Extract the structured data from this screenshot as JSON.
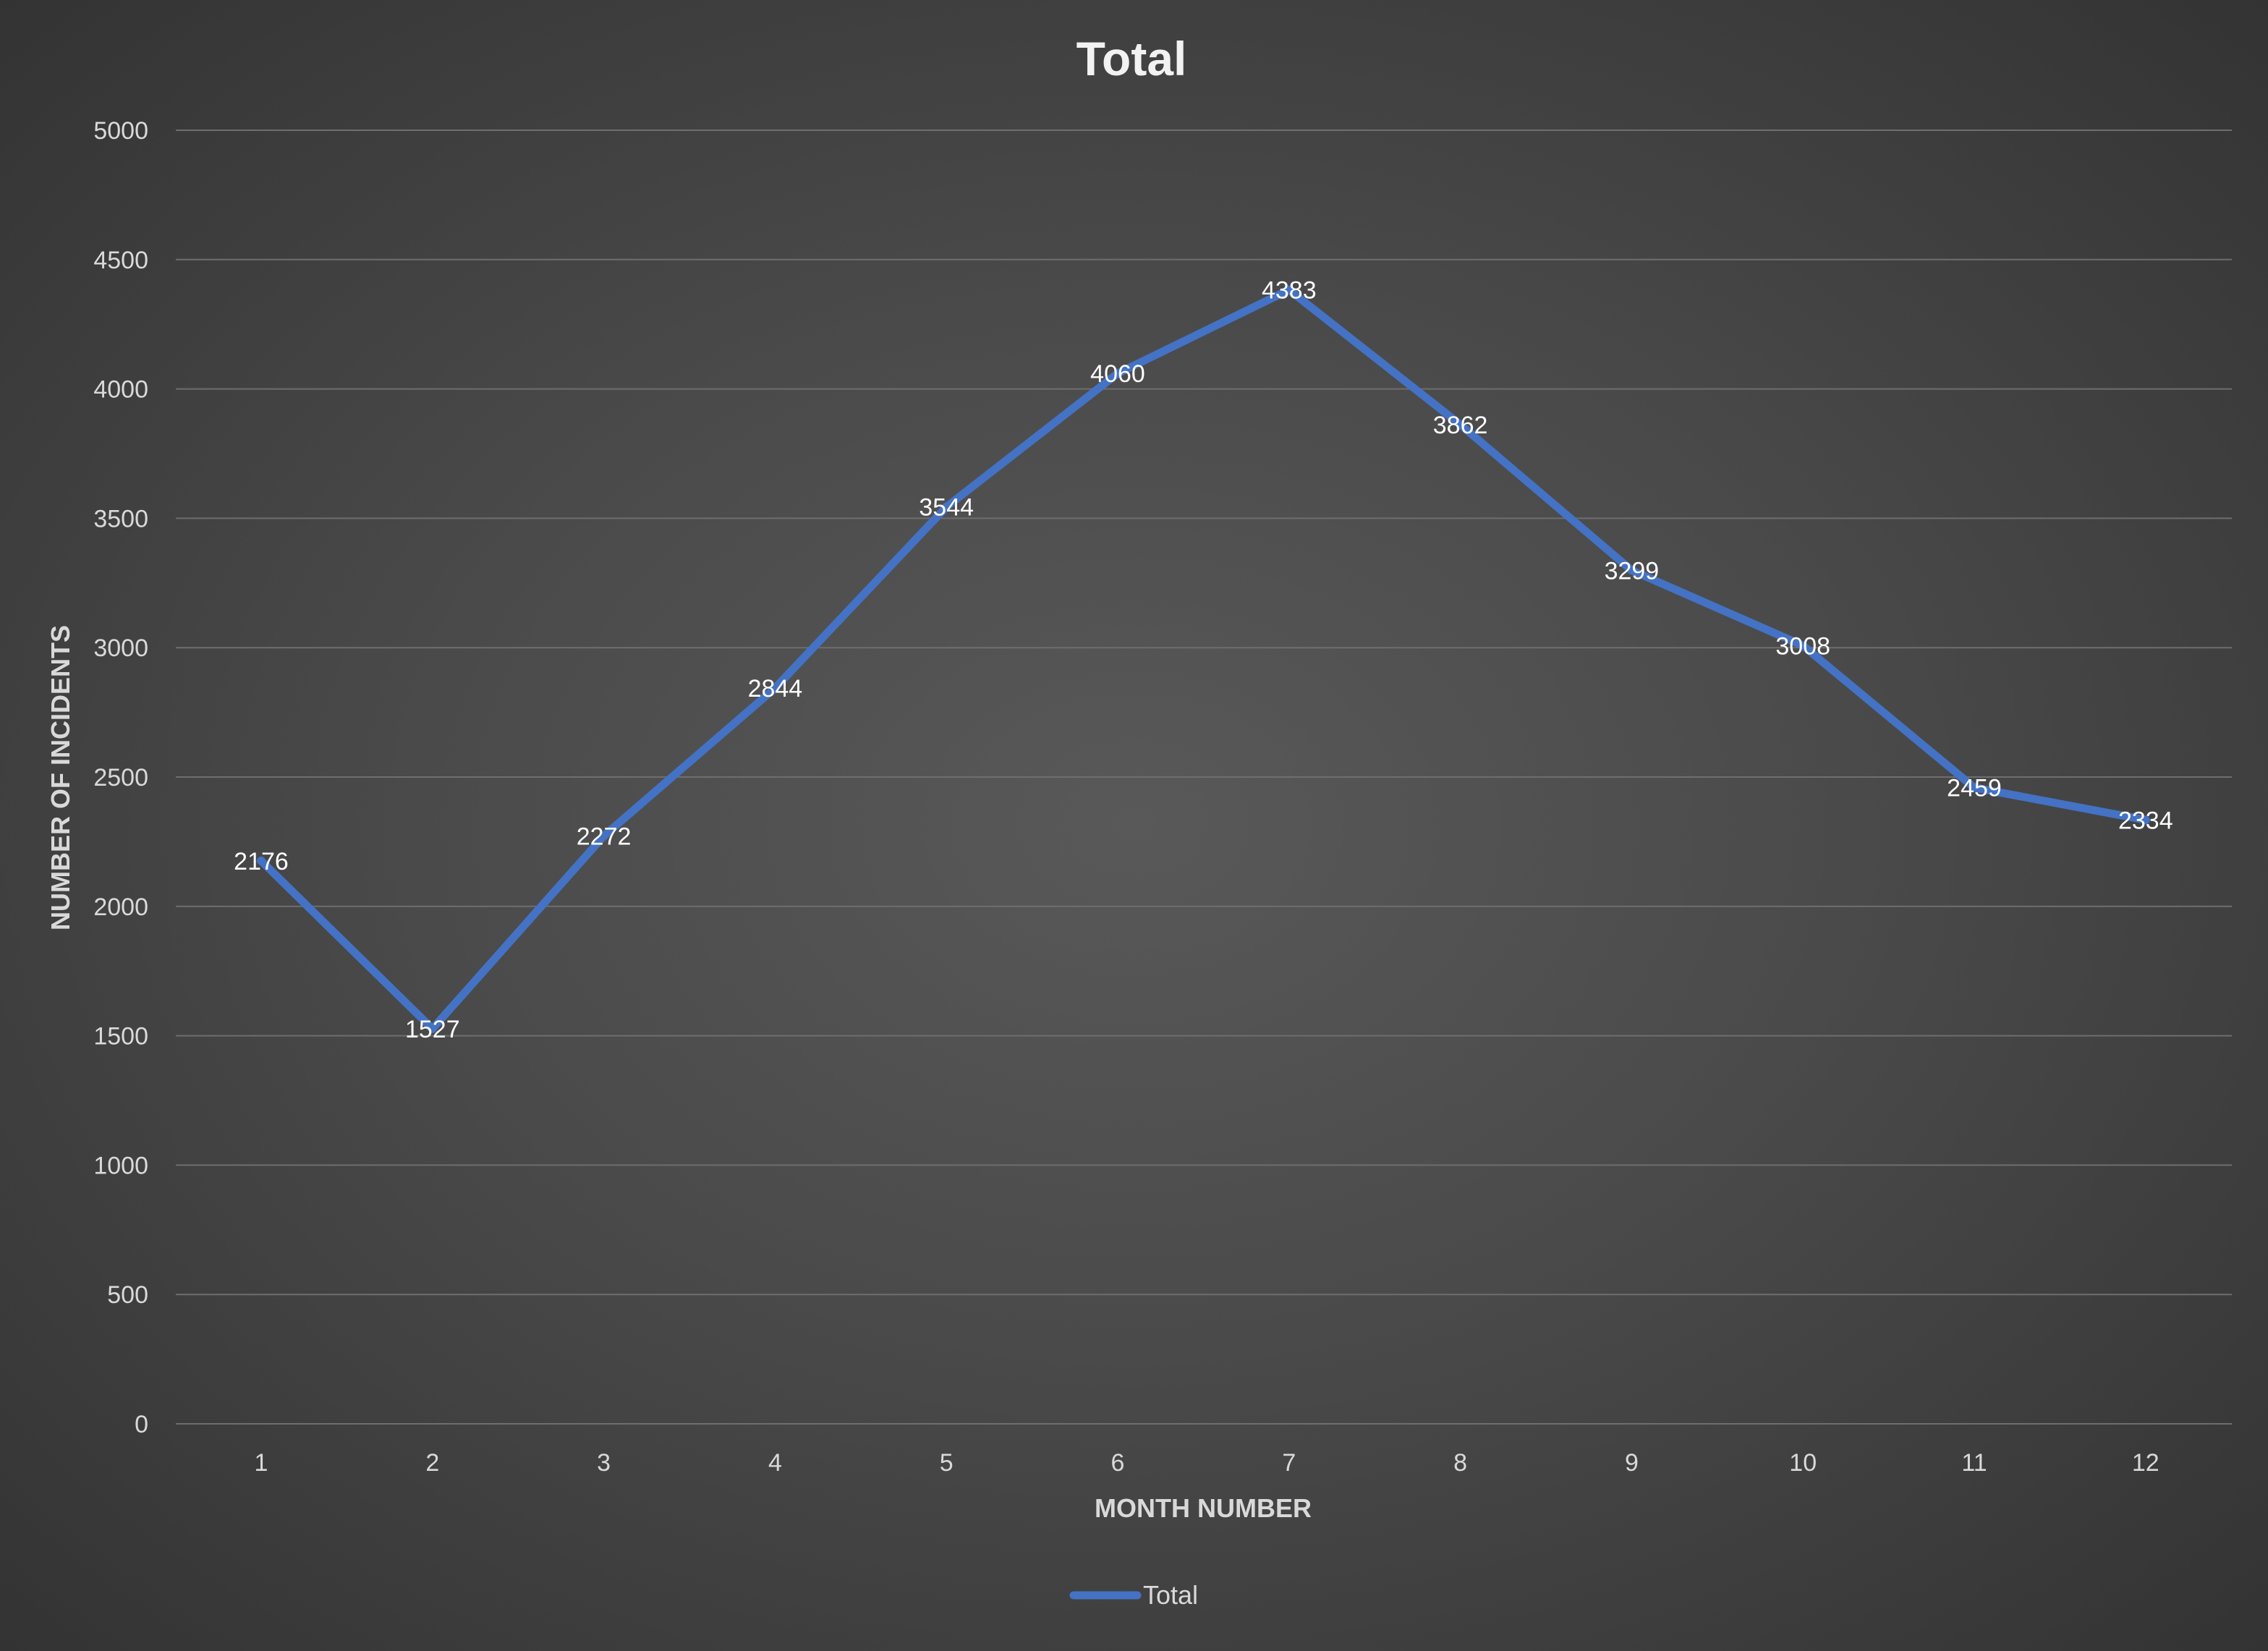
{
  "colors": {
    "series": "#4472C4"
  },
  "chart_data": {
    "type": "line",
    "title": "Total",
    "xlabel": "MONTH NUMBER",
    "ylabel": "NUMBER OF INCIDENTS",
    "x": [
      1,
      2,
      3,
      4,
      5,
      6,
      7,
      8,
      9,
      10,
      11,
      12
    ],
    "series": [
      {
        "name": "Total",
        "values": [
          2176,
          1527,
          2272,
          2844,
          3544,
          4060,
          4383,
          3862,
          3299,
          3008,
          2459,
          2334
        ]
      }
    ],
    "ylim": [
      0,
      5000
    ],
    "yticks": [
      0,
      500,
      1000,
      1500,
      2000,
      2500,
      3000,
      3500,
      4000,
      4500,
      5000
    ],
    "grid": true,
    "legend": "bottom",
    "data_labels": true
  }
}
